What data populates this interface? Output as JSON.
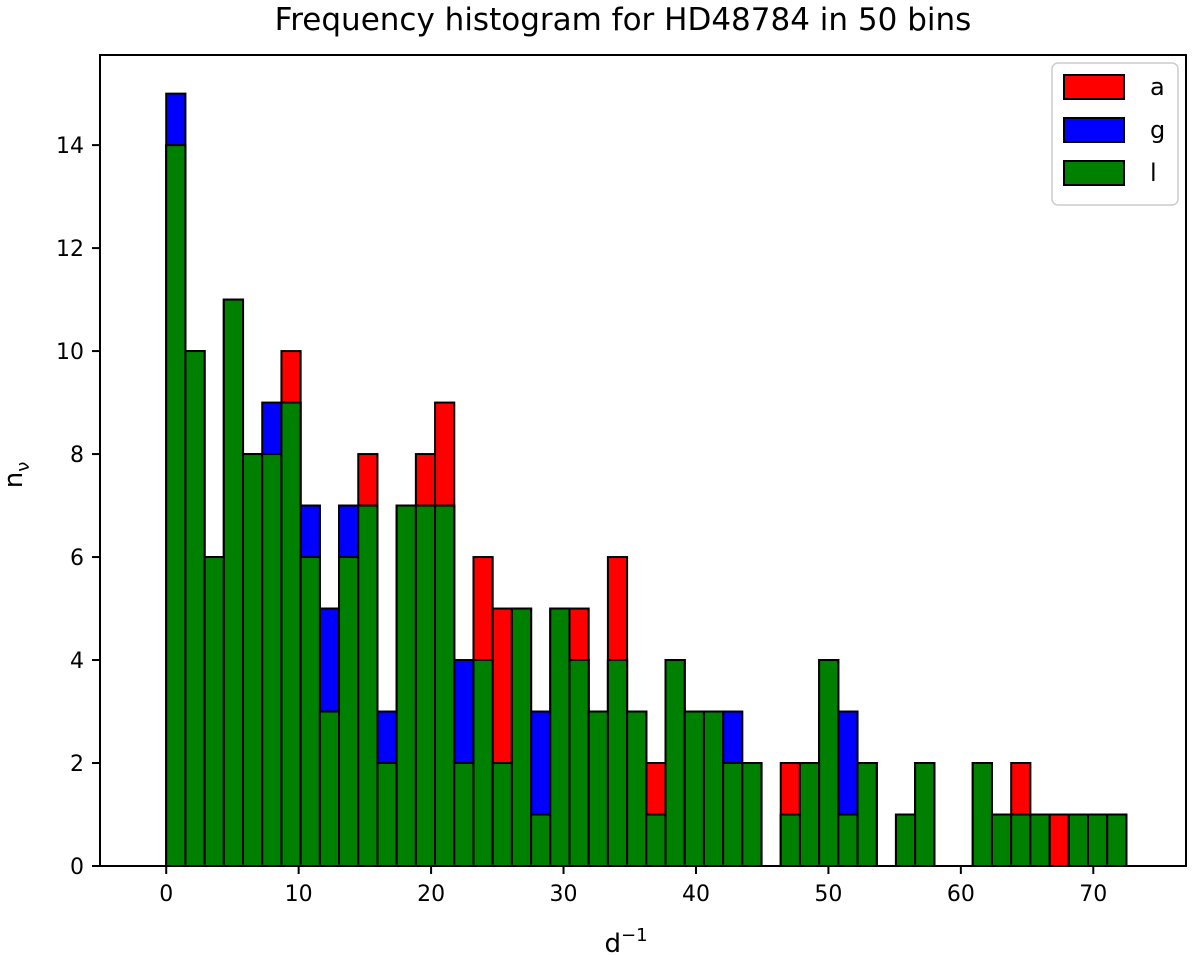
{
  "chart_data": {
    "type": "bar",
    "title": "Frequency histogram for HD48784 in 50 bins",
    "xlabel": "d",
    "xlabel_superscript": "−1",
    "ylabel": "n",
    "ylabel_subscript": "ν",
    "xlim": [
      -5.0,
      77.0
    ],
    "ylim": [
      0,
      15.75
    ],
    "x_ticks": [
      0,
      10,
      20,
      30,
      40,
      50,
      60,
      70
    ],
    "y_ticks": [
      0,
      2,
      4,
      6,
      8,
      10,
      12,
      14
    ],
    "bin_starts": {
      "a": [
        0,
        1.45,
        2.9,
        4.35,
        5.8,
        7.25,
        8.7,
        10.15,
        11.6,
        13.05,
        14.5,
        15.95,
        17.4,
        18.85,
        20.3,
        21.75,
        23.2,
        24.65,
        26.1,
        27.55,
        29,
        30.45,
        31.9,
        33.35,
        34.8,
        36.25,
        37.7,
        39.15,
        40.6,
        42.05,
        43.5,
        44.95,
        46.4,
        47.85,
        49.3,
        50.75,
        52.2,
        53.65,
        55.1,
        56.55,
        58,
        59.45,
        60.9,
        62.35,
        63.8,
        65.25,
        66.7,
        68.15,
        69.6,
        71.05
      ],
      "g": [
        0,
        1.45,
        2.9,
        4.35,
        5.8,
        7.25,
        8.7,
        10.15,
        11.6,
        13.05,
        14.5,
        15.95,
        17.4,
        18.85,
        20.3,
        21.75,
        23.2,
        24.65,
        26.1,
        27.55,
        29,
        30.45,
        31.9,
        33.35,
        34.8,
        36.25,
        37.7,
        39.15,
        40.6,
        42.05,
        43.5,
        44.95,
        46.4,
        47.85,
        49.3,
        50.75,
        52.2,
        53.65,
        55.1,
        56.55,
        58,
        59.45,
        60.9,
        62.35,
        63.8,
        65.25,
        66.7,
        68.15,
        69.6,
        71.05
      ],
      "l": [
        0,
        1.45,
        2.9,
        4.35,
        5.8,
        7.25,
        8.7,
        10.15,
        11.6,
        13.05,
        14.5,
        15.95,
        17.4,
        18.85,
        20.3,
        21.75,
        23.2,
        24.65,
        26.1,
        27.55,
        29,
        30.45,
        31.9,
        33.35,
        34.8,
        36.25,
        37.7,
        39.15,
        40.6,
        42.05,
        43.5,
        44.95,
        46.4,
        47.85,
        49.3,
        50.75,
        52.2,
        53.65,
        55.1,
        56.55,
        58,
        59.45,
        60.9,
        62.35,
        63.8,
        65.25,
        66.7,
        68.15,
        69.6,
        71.05
      ]
    },
    "bin_width": 1.45,
    "series": [
      {
        "name": "a",
        "color": "#ff0000",
        "values": [
          14,
          10,
          6,
          11,
          8,
          8,
          10,
          7,
          5,
          7,
          8,
          2,
          7,
          8,
          9,
          2,
          6,
          5,
          5,
          1,
          5,
          5,
          3,
          6,
          3,
          2,
          4,
          3,
          3,
          2,
          2,
          0,
          2,
          2,
          4,
          2,
          2,
          0,
          1,
          2,
          0,
          0,
          2,
          1,
          2,
          0,
          1,
          0,
          1,
          0
        ]
      },
      {
        "name": "g",
        "color": "#0000ff",
        "values": [
          15,
          10,
          6,
          11,
          8,
          9,
          9,
          7,
          5,
          7,
          7,
          3,
          7,
          7,
          7,
          4,
          4,
          2,
          5,
          3,
          5,
          4,
          3,
          4,
          3,
          1,
          4,
          3,
          3,
          3,
          2,
          0,
          1,
          2,
          3,
          3,
          2,
          0,
          1,
          2,
          0,
          0,
          2,
          1,
          1,
          1,
          0,
          0,
          1,
          1
        ]
      },
      {
        "name": "l",
        "color": "#008000",
        "values": [
          14,
          10,
          6,
          11,
          8,
          8,
          9,
          6,
          3,
          6,
          7,
          2,
          7,
          7,
          7,
          2,
          4,
          2,
          5,
          1,
          5,
          4,
          3,
          4,
          3,
          1,
          4,
          3,
          3,
          2,
          2,
          0,
          1,
          2,
          4,
          1,
          2,
          0,
          1,
          2,
          0,
          0,
          2,
          1,
          1,
          1,
          0,
          1,
          1,
          1
        ]
      }
    ],
    "legend_position": "top-right",
    "grid": false
  }
}
